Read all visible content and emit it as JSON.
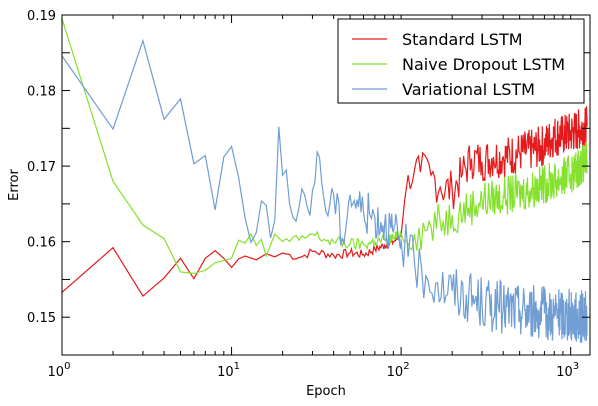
{
  "chart_data": {
    "type": "line",
    "xlabel": "Epoch",
    "ylabel": "Error",
    "x_scale": "log",
    "xlim": [
      1,
      1300
    ],
    "ylim": [
      0.145,
      0.19
    ],
    "x_ticks": [
      {
        "value": 1,
        "base": "10",
        "exp": "0"
      },
      {
        "value": 10,
        "base": "10",
        "exp": "1"
      },
      {
        "value": 100,
        "base": "10",
        "exp": "2"
      },
      {
        "value": 1000,
        "base": "10",
        "exp": "3"
      }
    ],
    "y_ticks": [
      {
        "value": 0.15,
        "label": "0.150"
      },
      {
        "value": 0.155,
        "label": ""
      },
      {
        "value": 0.16,
        "label": "0.160"
      },
      {
        "value": 0.165,
        "label": ""
      },
      {
        "value": 0.17,
        "label": "0.170"
      },
      {
        "value": 0.175,
        "label": ""
      },
      {
        "value": 0.18,
        "label": "0.180"
      },
      {
        "value": 0.185,
        "label": ""
      },
      {
        "value": 0.19,
        "label": "0.190"
      }
    ],
    "y_tick_labels_shown": [
      "0.15",
      "0.16",
      "0.17",
      "0.18",
      "0.19"
    ],
    "grid": false,
    "legend_position": "top-right",
    "series": [
      {
        "name": "Standard LSTM",
        "color": "#e41a1c",
        "points": [
          [
            1,
            0.1533
          ],
          [
            2,
            0.1592
          ],
          [
            3,
            0.1528
          ],
          [
            4,
            0.1552
          ],
          [
            5,
            0.1578
          ],
          [
            6,
            0.1551
          ],
          [
            7,
            0.1578
          ],
          [
            8,
            0.1588
          ],
          [
            9,
            0.1578
          ],
          [
            10,
            0.1566
          ],
          [
            11,
            0.1577
          ],
          [
            12,
            0.1581
          ],
          [
            14,
            0.1576
          ],
          [
            16,
            0.1584
          ],
          [
            18,
            0.158
          ],
          [
            20,
            0.1585
          ],
          [
            25,
            0.1579
          ],
          [
            30,
            0.1587
          ],
          [
            40,
            0.1582
          ],
          [
            50,
            0.1585
          ],
          [
            60,
            0.1583
          ],
          [
            70,
            0.159
          ],
          [
            80,
            0.1595
          ],
          [
            90,
            0.16
          ],
          [
            100,
            0.1608
          ],
          [
            105,
            0.1655
          ],
          [
            110,
            0.1688
          ],
          [
            120,
            0.1695
          ],
          [
            130,
            0.1692
          ],
          [
            150,
            0.1688
          ],
          [
            170,
            0.1672
          ],
          [
            200,
            0.1668
          ],
          [
            230,
            0.169
          ],
          [
            260,
            0.171
          ],
          [
            300,
            0.1706
          ],
          [
            350,
            0.1712
          ],
          [
            400,
            0.1712
          ],
          [
            500,
            0.1718
          ],
          [
            600,
            0.1722
          ],
          [
            700,
            0.1728
          ],
          [
            800,
            0.174
          ],
          [
            900,
            0.1741
          ],
          [
            1000,
            0.1744
          ],
          [
            1100,
            0.1748
          ],
          [
            1250,
            0.1752
          ]
        ]
      },
      {
        "name": "Naive Dropout LSTM",
        "color": "#84e12d",
        "points": [
          [
            1,
            0.1895
          ],
          [
            2,
            0.168
          ],
          [
            3,
            0.1622
          ],
          [
            4,
            0.1604
          ],
          [
            5,
            0.156
          ],
          [
            6,
            0.1558
          ],
          [
            7,
            0.1562
          ],
          [
            8,
            0.1572
          ],
          [
            9,
            0.1575
          ],
          [
            10,
            0.1578
          ],
          [
            11,
            0.1602
          ],
          [
            12,
            0.1598
          ],
          [
            13,
            0.161
          ],
          [
            14,
            0.1595
          ],
          [
            15,
            0.1603
          ],
          [
            16,
            0.1581
          ],
          [
            18,
            0.161
          ],
          [
            20,
            0.16
          ],
          [
            25,
            0.1602
          ],
          [
            30,
            0.161
          ],
          [
            35,
            0.1603
          ],
          [
            40,
            0.16
          ],
          [
            50,
            0.1597
          ],
          [
            60,
            0.1596
          ],
          [
            70,
            0.16
          ],
          [
            80,
            0.1602
          ],
          [
            90,
            0.1605
          ],
          [
            100,
            0.161
          ],
          [
            120,
            0.161
          ],
          [
            150,
            0.162
          ],
          [
            200,
            0.1635
          ],
          [
            250,
            0.1645
          ],
          [
            300,
            0.1655
          ],
          [
            400,
            0.166
          ],
          [
            500,
            0.1665
          ],
          [
            600,
            0.167
          ],
          [
            700,
            0.1677
          ],
          [
            800,
            0.168
          ],
          [
            1000,
            0.169
          ],
          [
            1250,
            0.1708
          ]
        ]
      },
      {
        "name": "Variational LSTM",
        "color": "#6f9dd4",
        "points": [
          [
            1,
            0.1846
          ],
          [
            2,
            0.1749
          ],
          [
            3,
            0.1866
          ],
          [
            4,
            0.1762
          ],
          [
            5,
            0.1789
          ],
          [
            6,
            0.1703
          ],
          [
            7,
            0.1714
          ],
          [
            8,
            0.1642
          ],
          [
            9,
            0.1712
          ],
          [
            10,
            0.1726
          ],
          [
            11,
            0.1685
          ],
          [
            12,
            0.1632
          ],
          [
            13,
            0.1599
          ],
          [
            14,
            0.1612
          ],
          [
            15,
            0.1654
          ],
          [
            16,
            0.1648
          ],
          [
            17,
            0.1605
          ],
          [
            18,
            0.1628
          ],
          [
            19,
            0.1752
          ],
          [
            20,
            0.1688
          ],
          [
            22,
            0.165
          ],
          [
            24,
            0.1627
          ],
          [
            26,
            0.167
          ],
          [
            28,
            0.1645
          ],
          [
            30,
            0.1668
          ],
          [
            33,
            0.1712
          ],
          [
            36,
            0.164
          ],
          [
            40,
            0.1663
          ],
          [
            45,
            0.1605
          ],
          [
            50,
            0.1662
          ],
          [
            60,
            0.164
          ],
          [
            70,
            0.1632
          ],
          [
            80,
            0.1625
          ],
          [
            90,
            0.1612
          ],
          [
            100,
            0.1603
          ],
          [
            110,
            0.158
          ],
          [
            120,
            0.1572
          ],
          [
            140,
            0.1555
          ],
          [
            160,
            0.1545
          ],
          [
            200,
            0.1535
          ],
          [
            250,
            0.1525
          ],
          [
            300,
            0.1518
          ],
          [
            400,
            0.1512
          ],
          [
            500,
            0.151
          ],
          [
            600,
            0.1508
          ],
          [
            700,
            0.1505
          ],
          [
            800,
            0.1503
          ],
          [
            1000,
            0.1502
          ],
          [
            1250,
            0.15
          ]
        ]
      }
    ]
  }
}
